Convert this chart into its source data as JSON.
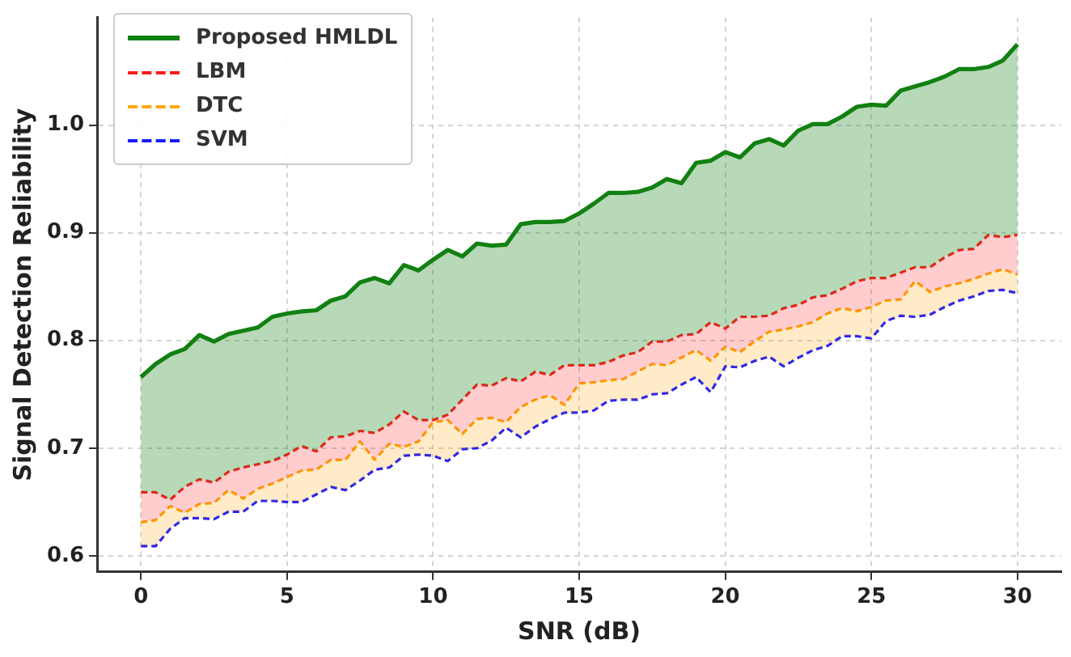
{
  "chart_data": {
    "type": "line",
    "xlabel": "SNR (dB)",
    "ylabel": "Signal Detection Reliability",
    "x": [
      0,
      0.5,
      1,
      1.5,
      2,
      2.5,
      3,
      3.5,
      4,
      4.5,
      5,
      5.5,
      6,
      6.5,
      7,
      7.5,
      8,
      8.5,
      9,
      9.5,
      10,
      10.5,
      11,
      11.5,
      12,
      12.5,
      13,
      13.5,
      14,
      14.5,
      15,
      15.5,
      16,
      16.5,
      17,
      17.5,
      18,
      18.5,
      19,
      19.5,
      20,
      20.5,
      21,
      21.5,
      22,
      22.5,
      23,
      23.5,
      24,
      24.5,
      25,
      25.5,
      26,
      26.5,
      27,
      27.5,
      28,
      28.5,
      29,
      29.5,
      30
    ],
    "series": [
      {
        "name": "Proposed HMLDL",
        "type": "area",
        "color": "#128012",
        "line_style": "solid",
        "values": [
          0.766,
          0.778,
          0.787,
          0.792,
          0.805,
          0.799,
          0.806,
          0.809,
          0.812,
          0.822,
          0.825,
          0.827,
          0.828,
          0.837,
          0.841,
          0.854,
          0.858,
          0.853,
          0.87,
          0.865,
          0.875,
          0.884,
          0.878,
          0.89,
          0.888,
          0.889,
          0.908,
          0.91,
          0.91,
          0.911,
          0.918,
          0.927,
          0.937,
          0.937,
          0.938,
          0.942,
          0.95,
          0.946,
          0.965,
          0.967,
          0.975,
          0.97,
          0.983,
          0.987,
          0.981,
          0.995,
          1.001,
          1.001,
          1.008,
          1.017,
          1.019,
          1.018,
          1.032,
          1.036,
          1.04,
          1.045,
          1.052,
          1.052,
          1.054,
          1.06,
          1.075
        ]
      },
      {
        "name": "LBM",
        "type": "area",
        "color": "#ff1a1a",
        "line_style": "dashed",
        "values": [
          0.659,
          0.659,
          0.652,
          0.664,
          0.671,
          0.668,
          0.678,
          0.682,
          0.685,
          0.688,
          0.694,
          0.702,
          0.697,
          0.71,
          0.711,
          0.716,
          0.714,
          0.722,
          0.734,
          0.726,
          0.726,
          0.731,
          0.745,
          0.759,
          0.758,
          0.765,
          0.762,
          0.771,
          0.768,
          0.777,
          0.777,
          0.777,
          0.78,
          0.786,
          0.789,
          0.799,
          0.799,
          0.805,
          0.806,
          0.817,
          0.811,
          0.822,
          0.822,
          0.823,
          0.83,
          0.833,
          0.84,
          0.842,
          0.848,
          0.855,
          0.858,
          0.858,
          0.863,
          0.868,
          0.868,
          0.877,
          0.884,
          0.885,
          0.898,
          0.896,
          0.898
        ]
      },
      {
        "name": "DTC",
        "type": "area",
        "color": "#ffa500",
        "line_style": "dashed",
        "values": [
          0.631,
          0.633,
          0.646,
          0.64,
          0.648,
          0.649,
          0.661,
          0.653,
          0.662,
          0.667,
          0.673,
          0.679,
          0.68,
          0.689,
          0.689,
          0.706,
          0.689,
          0.704,
          0.701,
          0.706,
          0.724,
          0.726,
          0.713,
          0.727,
          0.728,
          0.724,
          0.738,
          0.745,
          0.749,
          0.74,
          0.76,
          0.761,
          0.763,
          0.764,
          0.771,
          0.778,
          0.777,
          0.784,
          0.791,
          0.781,
          0.794,
          0.789,
          0.799,
          0.808,
          0.81,
          0.813,
          0.817,
          0.825,
          0.83,
          0.827,
          0.831,
          0.837,
          0.838,
          0.855,
          0.845,
          0.85,
          0.853,
          0.857,
          0.862,
          0.866,
          0.861
        ]
      },
      {
        "name": "SVM",
        "color": "#1a1aff",
        "line_style": "dashed",
        "values": [
          0.609,
          0.609,
          0.625,
          0.635,
          0.635,
          0.634,
          0.641,
          0.641,
          0.651,
          0.651,
          0.65,
          0.65,
          0.657,
          0.664,
          0.661,
          0.67,
          0.68,
          0.682,
          0.693,
          0.694,
          0.693,
          0.688,
          0.699,
          0.7,
          0.707,
          0.719,
          0.71,
          0.72,
          0.727,
          0.733,
          0.733,
          0.735,
          0.744,
          0.745,
          0.745,
          0.75,
          0.751,
          0.759,
          0.766,
          0.752,
          0.776,
          0.775,
          0.781,
          0.785,
          0.776,
          0.784,
          0.791,
          0.795,
          0.804,
          0.804,
          0.802,
          0.818,
          0.823,
          0.822,
          0.824,
          0.831,
          0.837,
          0.841,
          0.846,
          0.847,
          0.844
        ]
      }
    ],
    "xlim": [
      -1.5,
      31.5
    ],
    "xticks": [
      0,
      5,
      10,
      15,
      20,
      25,
      30
    ],
    "ylim": [
      0.585,
      1.1
    ],
    "yticks": [
      0.6,
      0.7,
      0.8,
      0.9,
      {
        "value": 1,
        "label": "1.0"
      }
    ],
    "grid": true,
    "legend": "top left",
    "marker": "none"
  }
}
